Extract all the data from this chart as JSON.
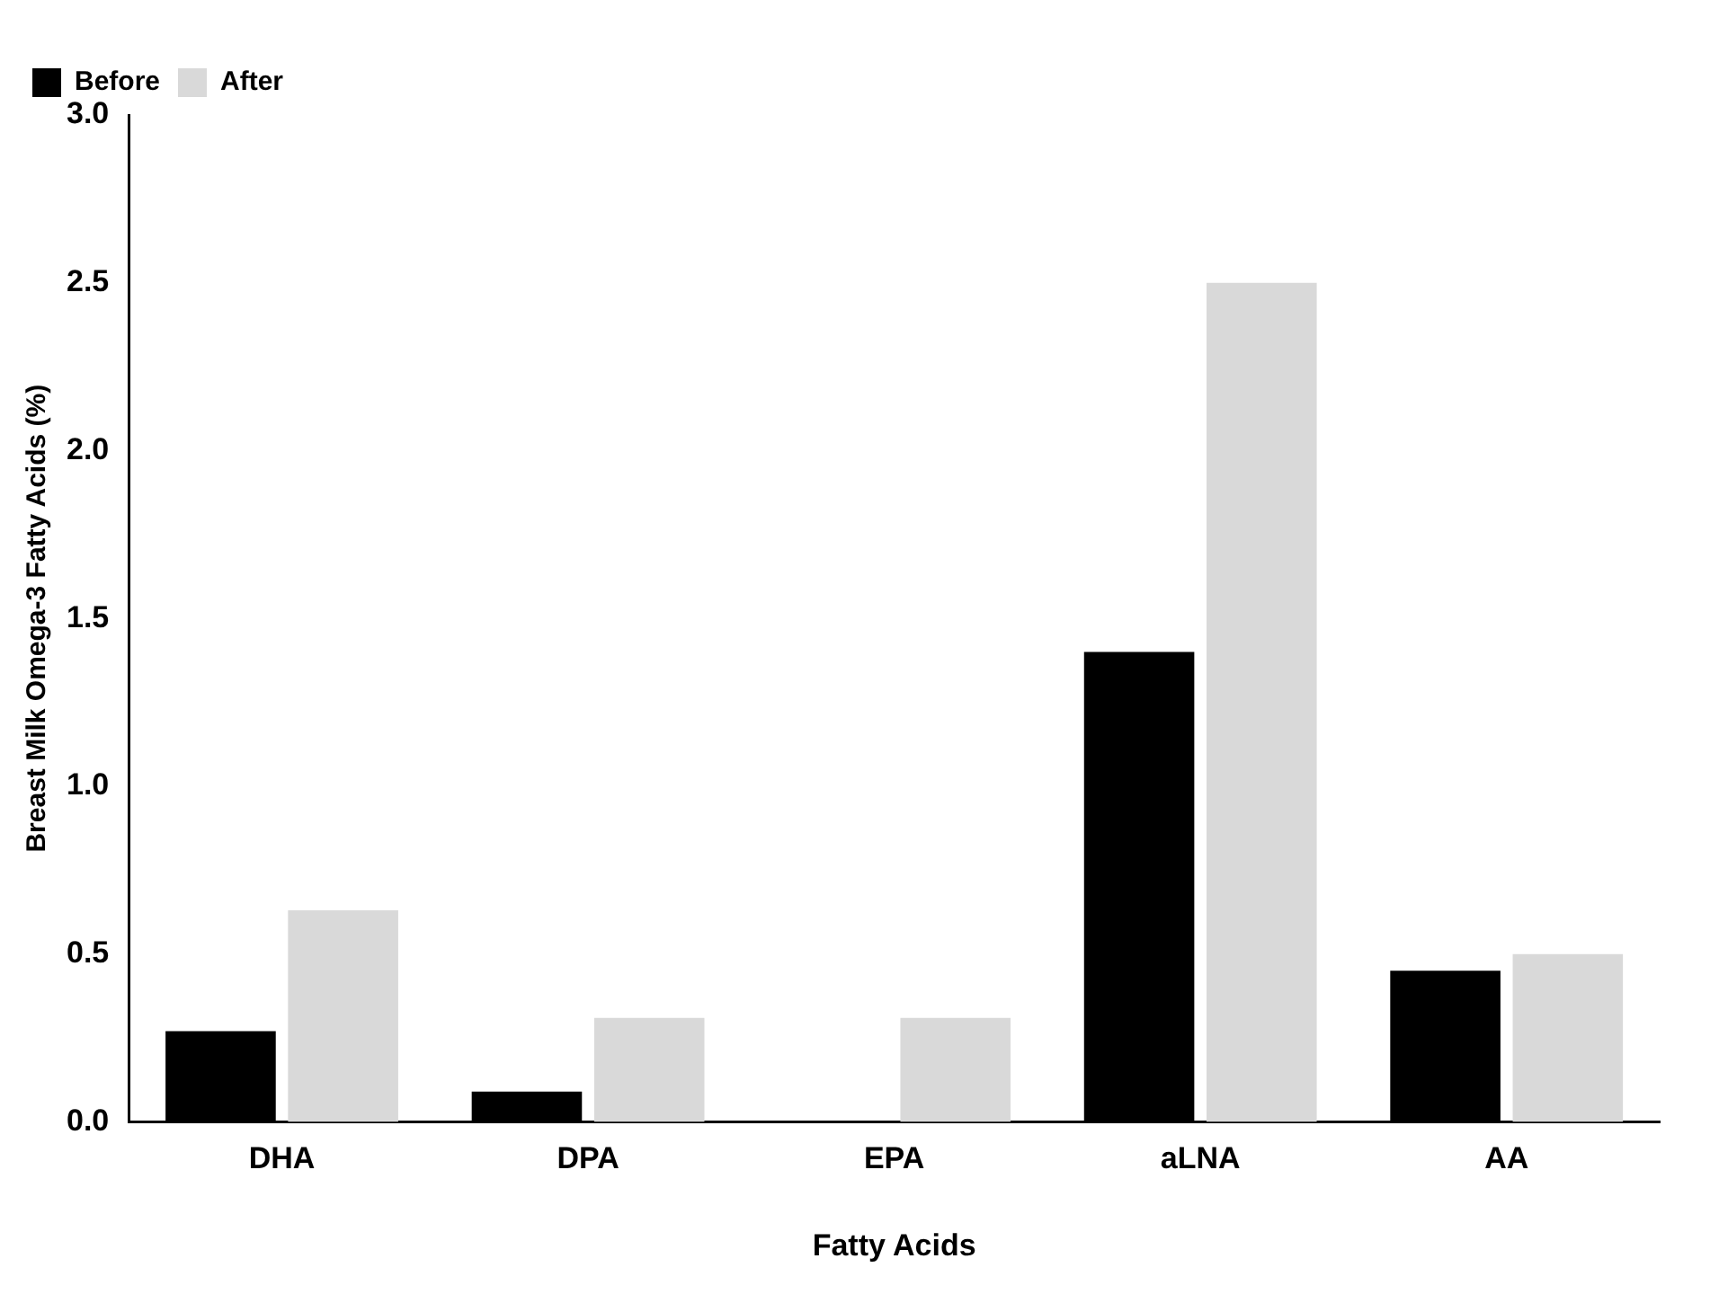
{
  "chart_data": {
    "type": "bar",
    "xlabel": "Fatty Acids",
    "ylabel": "Breast Milk Omega-3 Fatty Acids (%)",
    "categories": [
      "DHA",
      "DPA",
      "EPA",
      "aLNA",
      "AA"
    ],
    "series": [
      {
        "name": "Before",
        "color": "#000000",
        "values": [
          0.27,
          0.09,
          0,
          1.4,
          0.45
        ]
      },
      {
        "name": "After",
        "color": "#d9d9d9",
        "values": [
          0.63,
          0.31,
          0.31,
          2.5,
          0.5
        ]
      }
    ],
    "ylim": [
      0,
      3
    ],
    "yticks": [
      {
        "value": 0,
        "label": "0.0"
      },
      {
        "value": 0.5,
        "label": "0.5"
      },
      {
        "value": 1,
        "label": "1.0"
      },
      {
        "value": 1.5,
        "label": "1.5"
      },
      {
        "value": 2,
        "label": "2.0"
      },
      {
        "value": 2.5,
        "label": "2.5"
      },
      {
        "value": 3,
        "label": "3.0"
      }
    ],
    "grid": false,
    "legend": "top left"
  }
}
